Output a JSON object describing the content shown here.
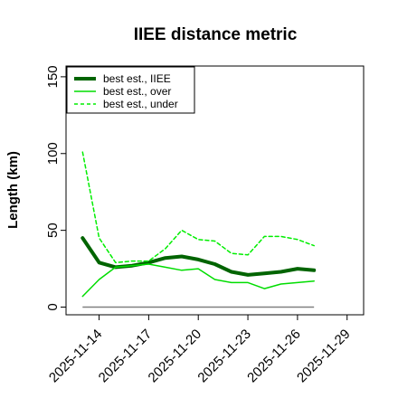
{
  "chart_data": {
    "type": "line",
    "title": "IIEE distance metric",
    "xlabel": "",
    "ylabel": "Length (km)",
    "x": [
      "2025-11-13",
      "2025-11-14",
      "2025-11-15",
      "2025-11-16",
      "2025-11-17",
      "2025-11-18",
      "2025-11-19",
      "2025-11-20",
      "2025-11-21",
      "2025-11-22",
      "2025-11-23",
      "2025-11-24",
      "2025-11-25",
      "2025-11-26",
      "2025-11-27"
    ],
    "x_ticks": [
      "2025-11-14",
      "2025-11-17",
      "2025-11-20",
      "2025-11-23",
      "2025-11-26",
      "2025-11-29"
    ],
    "x_range": [
      "2025-11-12",
      "2025-11-30"
    ],
    "y_ticks": [
      0,
      50,
      100,
      150
    ],
    "ylim": [
      -5,
      157
    ],
    "grid": false,
    "legend_position": "top-left",
    "reference_line": {
      "y": 0,
      "color": "#808080"
    },
    "series": [
      {
        "name": "best est., IIEE",
        "color": "#006400",
        "style": "thick",
        "values": [
          45,
          29,
          26,
          27,
          29,
          32,
          33,
          31,
          28,
          23,
          21,
          22,
          23,
          25,
          24
        ]
      },
      {
        "name": "best est., over",
        "color": "#00dd00",
        "style": "solid",
        "values": [
          7,
          18,
          26,
          27,
          28,
          26,
          24,
          25,
          18,
          16,
          16,
          12,
          15,
          16,
          17
        ]
      },
      {
        "name": "best est., under",
        "color": "#00ee00",
        "style": "dashed",
        "values": [
          101,
          45,
          29,
          30,
          30,
          38,
          50,
          44,
          43,
          35,
          34,
          46,
          46,
          44,
          40
        ]
      }
    ]
  }
}
